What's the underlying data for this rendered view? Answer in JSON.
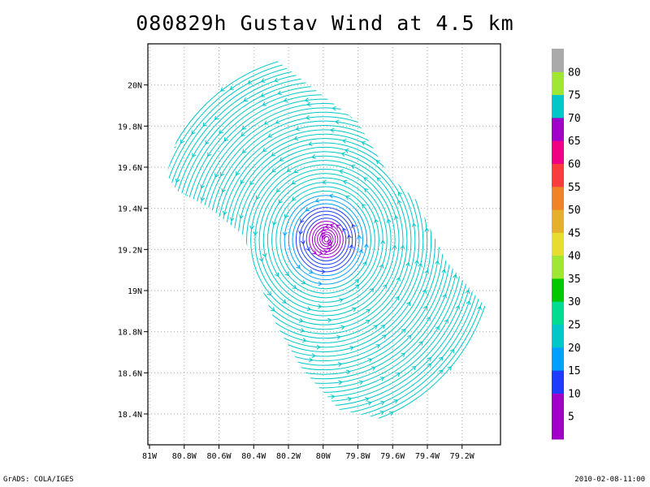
{
  "title": "080829h Gustav Wind at 4.5 km",
  "footer": {
    "left": "GrADS: COLA/IGES",
    "right": "2010-02-08-11:00"
  },
  "map": {
    "lon_range": [
      -81.0,
      -79.0
    ],
    "lat_range": [
      18.25,
      20.2
    ],
    "x_ticks": [
      {
        "lon": -81.0,
        "label": "81W"
      },
      {
        "lon": -80.8,
        "label": "80.8W"
      },
      {
        "lon": -80.6,
        "label": "80.6W"
      },
      {
        "lon": -80.4,
        "label": "80.4W"
      },
      {
        "lon": -80.2,
        "label": "80.2W"
      },
      {
        "lon": -80.0,
        "label": "80W"
      },
      {
        "lon": -79.8,
        "label": "79.8W"
      },
      {
        "lon": -79.6,
        "label": "79.6W"
      },
      {
        "lon": -79.4,
        "label": "79.4W"
      },
      {
        "lon": -79.2,
        "label": "79.2W"
      }
    ],
    "y_ticks": [
      {
        "lat": 18.4,
        "label": "18.4N"
      },
      {
        "lat": 18.6,
        "label": "18.6N"
      },
      {
        "lat": 18.8,
        "label": "18.8N"
      },
      {
        "lat": 19.0,
        "label": "19N"
      },
      {
        "lat": 19.2,
        "label": "19.2N"
      },
      {
        "lat": 19.4,
        "label": "19.4N"
      },
      {
        "lat": 19.6,
        "label": "19.6N"
      },
      {
        "lat": 19.8,
        "label": "19.8N"
      },
      {
        "lat": 20.0,
        "label": "20N"
      }
    ],
    "grid": "dotted",
    "vortex_center": {
      "lon": -79.98,
      "lat": 19.25
    },
    "streamline_rotation": "counter-clockwise"
  },
  "colorbar": {
    "levels": [
      5,
      10,
      15,
      20,
      25,
      30,
      35,
      40,
      45,
      50,
      55,
      60,
      65,
      70,
      75,
      80
    ],
    "colors": [
      "#a000c8",
      "#a000c8",
      "#1e3cff",
      "#00a0ff",
      "#00c8c8",
      "#00dc90",
      "#00c800",
      "#a0e632",
      "#e6dc32",
      "#e6af2d",
      "#f08228",
      "#fa3c3c",
      "#f00082",
      "#a000c8",
      "#00c8c8",
      "#a0e632",
      "#aaaaaa"
    ]
  },
  "rings": [
    {
      "r": 0.012,
      "color": "#a000c8"
    },
    {
      "r": 0.022,
      "color": "#a000c8"
    },
    {
      "r": 0.032,
      "color": "#a000c8"
    },
    {
      "r": 0.044,
      "color": "#a000c8"
    },
    {
      "r": 0.056,
      "color": "#a000c8"
    },
    {
      "r": 0.068,
      "color": "#a000c8"
    },
    {
      "r": 0.082,
      "color": "#a000c8"
    },
    {
      "r": 0.096,
      "color": "#1e3cff"
    },
    {
      "r": 0.112,
      "color": "#1e3cff"
    },
    {
      "r": 0.128,
      "color": "#1e3cff"
    },
    {
      "r": 0.145,
      "color": "#1e3cff"
    },
    {
      "r": 0.162,
      "color": "#00a0ff"
    },
    {
      "r": 0.18,
      "color": "#00a0ff"
    },
    {
      "r": 0.2,
      "color": "#00a0ff"
    },
    {
      "r": 0.22,
      "color": "#00c8c8"
    },
    {
      "r": 0.24,
      "color": "#00c8c8"
    },
    {
      "r": 0.26,
      "color": "#00c8c8"
    },
    {
      "r": 0.28,
      "color": "#00c8c8"
    },
    {
      "r": 0.3,
      "color": "#00c8c8"
    },
    {
      "r": 0.32,
      "color": "#00c8c8"
    },
    {
      "r": 0.34,
      "color": "#00c8c8"
    },
    {
      "r": 0.36,
      "color": "#00c8c8"
    },
    {
      "r": 0.38,
      "color": "#00c8c8"
    },
    {
      "r": 0.4,
      "color": "#00c8c8"
    },
    {
      "r": 0.42,
      "color": "#00c8c8"
    },
    {
      "r": 0.44,
      "color": "#00c8c8"
    },
    {
      "r": 0.46,
      "color": "#00c8c8"
    },
    {
      "r": 0.48,
      "color": "#00c8c8"
    },
    {
      "r": 0.5,
      "color": "#00c8c8"
    },
    {
      "r": 0.52,
      "color": "#00c8c8"
    },
    {
      "r": 0.54,
      "color": "#00c8c8"
    },
    {
      "r": 0.56,
      "color": "#00c8c8"
    },
    {
      "r": 0.58,
      "color": "#00c8c8"
    },
    {
      "r": 0.6,
      "color": "#00c8c8"
    },
    {
      "r": 0.62,
      "color": "#00c8c8"
    },
    {
      "r": 0.64,
      "color": "#00c8c8"
    },
    {
      "r": 0.66,
      "color": "#00c8c8"
    },
    {
      "r": 0.68,
      "color": "#00c8c8"
    },
    {
      "r": 0.7,
      "color": "#00c8c8"
    },
    {
      "r": 0.72,
      "color": "#00c8c8"
    },
    {
      "r": 0.74,
      "color": "#00c8c8"
    },
    {
      "r": 0.76,
      "color": "#00c8c8"
    },
    {
      "r": 0.78,
      "color": "#00c8c8"
    },
    {
      "r": 0.8,
      "color": "#00c8c8"
    },
    {
      "r": 0.82,
      "color": "#00c8c8"
    },
    {
      "r": 0.84,
      "color": "#00c8c8"
    }
  ]
}
